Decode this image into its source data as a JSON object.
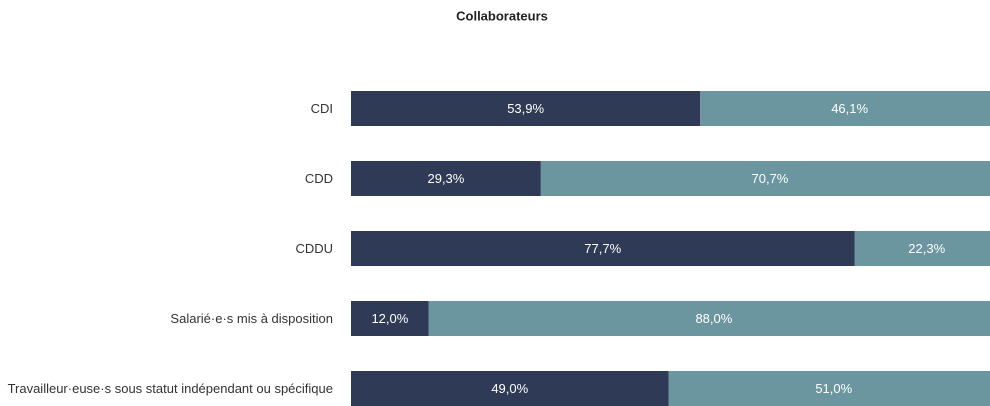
{
  "chart_data": {
    "type": "stacked_bar_horizontal",
    "title": "Collaborateurs",
    "categories": [
      "CDI",
      "CDD",
      "CDDU",
      "Salarié·e·s mis à disposition",
      "Travailleur·euse·s sous statut indépendant ou spécifique"
    ],
    "series": [
      {
        "color": "#2e3a56",
        "values": [
          53.9,
          29.3,
          77.7,
          12.0,
          49.0
        ],
        "value_labels": [
          "53,9%",
          "29,3%",
          "77,7%",
          "12,0%",
          "49,0%"
        ]
      },
      {
        "color": "#6b96a0",
        "values": [
          46.1,
          70.7,
          22.3,
          88.0,
          51.0
        ],
        "value_labels": [
          "46,1%",
          "70,7%",
          "22,3%",
          "88,0%",
          "51,0%"
        ]
      }
    ],
    "xlim": [
      0,
      100
    ]
  }
}
